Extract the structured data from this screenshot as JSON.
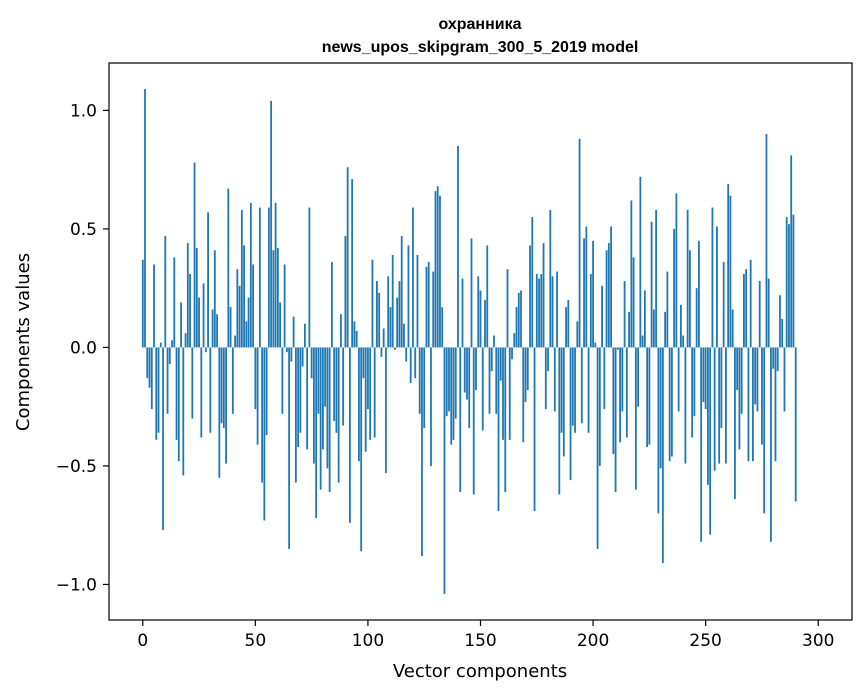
{
  "chart_data": {
    "type": "bar",
    "title_line1": "охранника",
    "title_line2": "news_upos_skipgram_300_5_2019 model",
    "xlabel": "Vector components",
    "ylabel": "Components values",
    "xlim": [
      -15,
      315
    ],
    "ylim": [
      -1.15,
      1.2
    ],
    "xticks": [
      0,
      50,
      100,
      150,
      200,
      250,
      300
    ],
    "xtick_labels": [
      "0",
      "50",
      "100",
      "150",
      "200",
      "250",
      "300"
    ],
    "yticks": [
      -1.0,
      -0.5,
      0.0,
      0.5,
      1.0
    ],
    "ytick_labels": [
      "−1.0",
      "−0.5",
      "0.0",
      "0.5",
      "1.0"
    ],
    "bar_color": "#1f77b4",
    "values": [
      0.37,
      1.09,
      -0.13,
      -0.17,
      -0.26,
      0.35,
      -0.39,
      -0.36,
      0.02,
      -0.77,
      0.47,
      -0.28,
      -0.07,
      0.03,
      0.38,
      -0.39,
      -0.48,
      0.19,
      -0.54,
      0.06,
      0.44,
      0.31,
      -0.3,
      0.78,
      0.42,
      0.21,
      -0.38,
      0.27,
      -0.02,
      0.57,
      -0.36,
      0.16,
      0.41,
      0.14,
      -0.55,
      -0.32,
      -0.34,
      -0.49,
      0.67,
      0.17,
      -0.28,
      0.05,
      0.33,
      0.26,
      0.58,
      0.43,
      0.11,
      0.21,
      0.61,
      0.35,
      -0.26,
      -0.41,
      0.59,
      -0.57,
      -0.73,
      -0.37,
      0.59,
      1.04,
      0.41,
      0.61,
      0.42,
      0.19,
      -0.28,
      0.35,
      -0.02,
      -0.85,
      -0.06,
      0.13,
      -0.57,
      -0.42,
      -0.36,
      -0.08,
      0.1,
      -0.43,
      0.59,
      -0.13,
      -0.49,
      -0.72,
      -0.28,
      -0.6,
      -0.43,
      -0.25,
      -0.51,
      -0.61,
      0.36,
      -0.31,
      -0.36,
      -0.57,
      0.14,
      -0.33,
      0.47,
      0.76,
      -0.74,
      0.71,
      0.11,
      0.07,
      -0.48,
      -0.86,
      -0.13,
      -0.44,
      -0.26,
      -0.39,
      0.37,
      -0.38,
      0.28,
      0.23,
      -0.04,
      0.08,
      -0.53,
      0.3,
      0.17,
      0.39,
      -0.01,
      0.21,
      0.28,
      0.47,
      0.1,
      -0.06,
      0.43,
      -0.15,
      0.59,
      -0.13,
      0.39,
      -0.28,
      -0.88,
      -0.34,
      0.34,
      0.36,
      -0.5,
      0.32,
      0.66,
      0.68,
      0.64,
      0.17,
      -1.04,
      -0.29,
      -0.27,
      -0.41,
      -0.39,
      -0.3,
      0.85,
      -0.61,
      0.29,
      -0.19,
      -0.22,
      -0.34,
      0.46,
      -0.62,
      -0.18,
      0.3,
      0.24,
      -0.35,
      0.2,
      0.43,
      -0.28,
      -0.1,
      0.05,
      -0.28,
      -0.69,
      -0.14,
      -0.39,
      -0.61,
      0.33,
      -0.39,
      -0.05,
      0.06,
      0.17,
      0.23,
      0.24,
      -0.4,
      -0.23,
      -0.18,
      0.43,
      0.55,
      -0.69,
      0.31,
      0.29,
      0.31,
      0.44,
      -0.26,
      -0.1,
      0.58,
      0.3,
      -0.27,
      0.32,
      -0.62,
      -0.36,
      -0.46,
      0.17,
      0.2,
      -0.56,
      -0.33,
      -0.36,
      0.11,
      0.88,
      -0.32,
      0.46,
      0.51,
      -0.36,
      0.31,
      0.45,
      0.02,
      -0.85,
      -0.5,
      0.26,
      -0.26,
      0.41,
      0.44,
      0.51,
      -0.45,
      -0.61,
      -0.01,
      -0.4,
      -0.27,
      0.28,
      -0.38,
      0.15,
      0.62,
      0.38,
      -0.6,
      -0.25,
      0.72,
      0.05,
      0.24,
      -0.42,
      -0.41,
      0.53,
      0.16,
      0.58,
      -0.7,
      -0.51,
      -0.91,
      0.15,
      0.32,
      -0.48,
      -0.46,
      0.5,
      0.65,
      -0.27,
      0.18,
      0.05,
      -0.49,
      0.58,
      0.41,
      -0.38,
      -0.29,
      0.25,
      0.45,
      -0.82,
      -0.23,
      -0.26,
      -0.58,
      -0.79,
      0.59,
      -0.52,
      0.51,
      -0.49,
      -0.34,
      0.36,
      -0.49,
      0.69,
      0.64,
      0.16,
      -0.64,
      -0.18,
      -0.43,
      -0.28,
      0.31,
      0.33,
      -0.48,
      0.37,
      -0.48,
      -0.24,
      -0.27,
      0.28,
      -0.41,
      -0.7,
      0.9,
      0.29,
      -0.82,
      -0.09,
      -0.48,
      -0.1,
      0.22,
      0.12,
      -0.27,
      0.55,
      0.52,
      0.81,
      0.56,
      -0.65,
      0.0
    ]
  }
}
